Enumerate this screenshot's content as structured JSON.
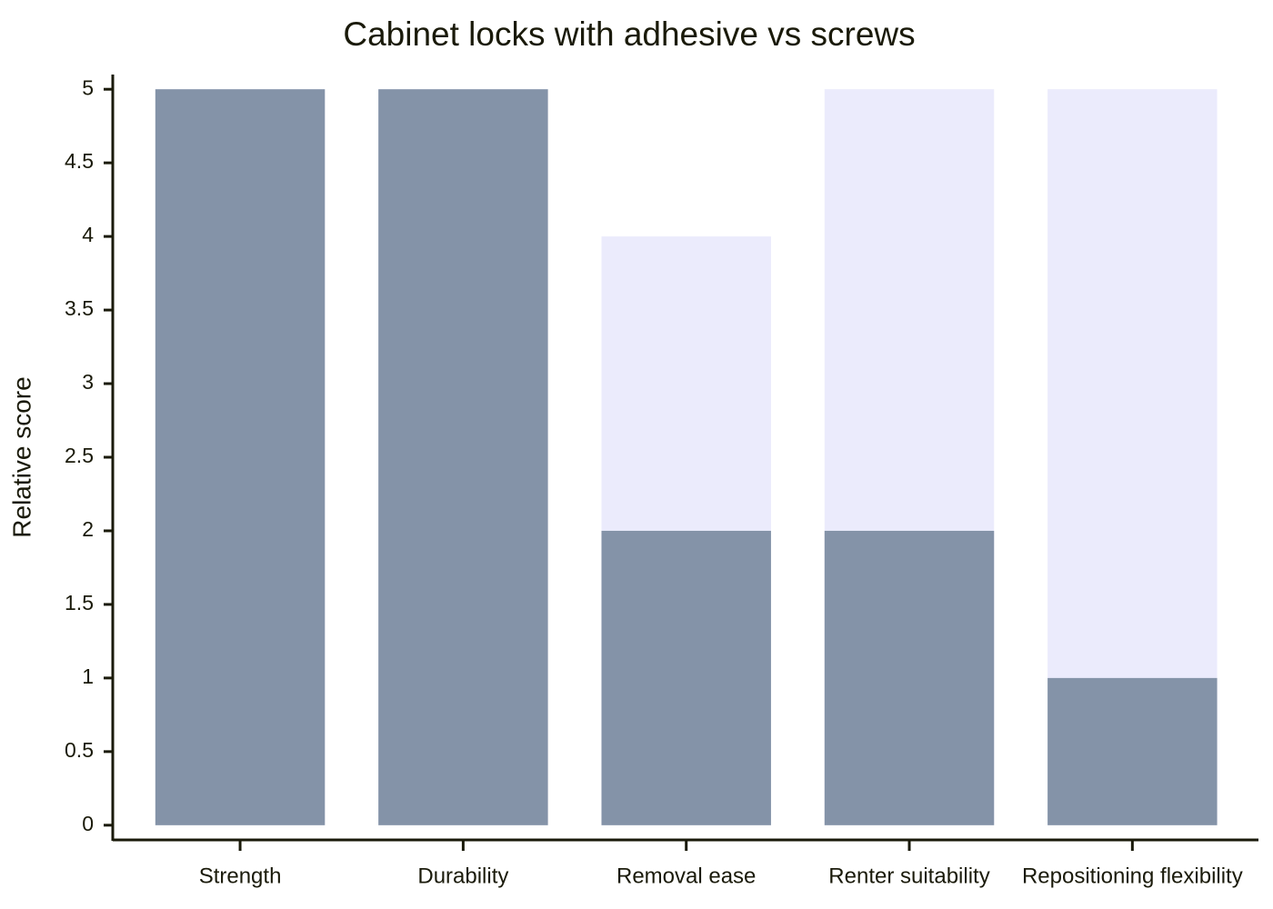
{
  "chart_data": {
    "type": "bar",
    "barmode": "overlay",
    "title": "Cabinet locks with adhesive vs screws",
    "y_label": "Relative score",
    "categories": [
      "Strength",
      "Durability",
      "Removal ease",
      "Renter suitability",
      "Repositioning flexibility"
    ],
    "series": [
      {
        "color": "#ebebfc",
        "values": [
          5,
          5,
          4,
          5,
          5
        ]
      },
      {
        "color": "#8493a8",
        "values": [
          5,
          5,
          2,
          2,
          1
        ]
      }
    ],
    "ylim": [
      -0.1,
      5.1
    ],
    "yticks": [
      0,
      0.5,
      1,
      1.5,
      2,
      2.5,
      3,
      3.5,
      4,
      4.5,
      5
    ],
    "grid": false
  }
}
